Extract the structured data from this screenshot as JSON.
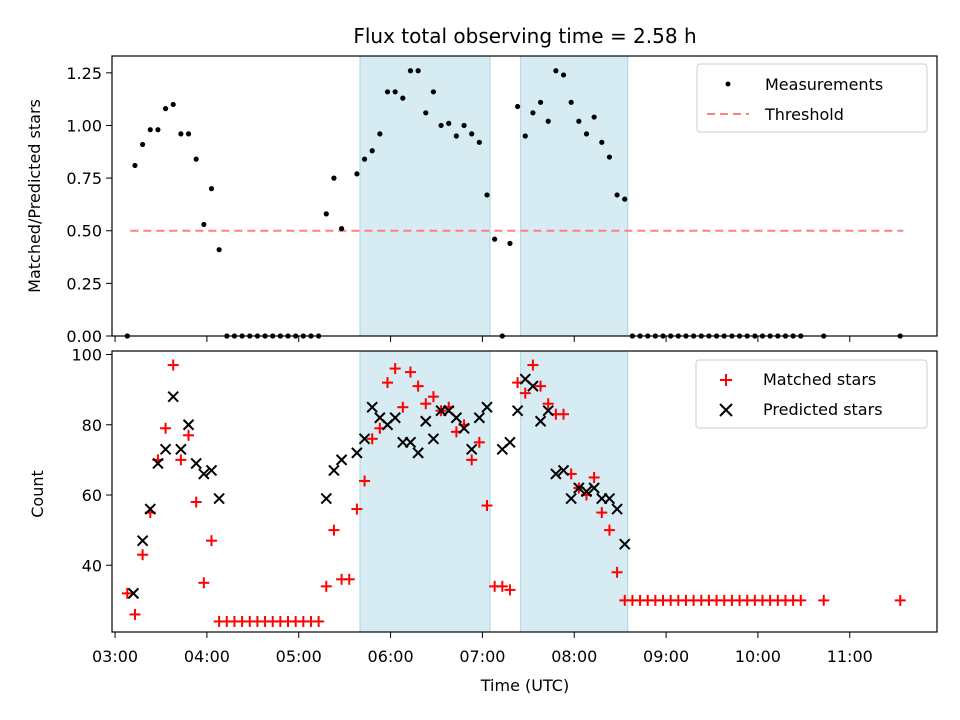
{
  "chart_data": {
    "type": "scatter",
    "title": "Flux total observing time = 2.58 h",
    "xlabel": "Time (UTC)",
    "x_ticks": [
      "03:00",
      "04:00",
      "05:00",
      "06:00",
      "07:00",
      "08:00",
      "09:00",
      "10:00",
      "11:00"
    ],
    "xlim": [
      "02:58",
      "11:57"
    ],
    "observing_windows": [
      {
        "start": "05:40",
        "end": "07:05"
      },
      {
        "start": "07:25",
        "end": "08:35"
      }
    ],
    "panels": [
      {
        "ylabel": "Matched/Predicted stars",
        "ylim": [
          0,
          1.33
        ],
        "y_ticks": [
          "0.00",
          "0.25",
          "0.50",
          "0.75",
          "1.00",
          "1.25"
        ],
        "legend_position": "upper-right",
        "threshold": {
          "name": "Threshold",
          "value": 0.5,
          "color": "#ff8080",
          "x_range": [
            "03:10",
            "11:35"
          ]
        },
        "series": [
          {
            "name": "Measurements",
            "marker": "dot",
            "color": "#000000",
            "points": [
              [
                "03:08",
                0
              ],
              [
                "03:13",
                0.81
              ],
              [
                "03:18",
                0.91
              ],
              [
                "03:23",
                0.98
              ],
              [
                "03:28",
                0.98
              ],
              [
                "03:33",
                1.08
              ],
              [
                "03:38",
                1.1
              ],
              [
                "03:43",
                0.96
              ],
              [
                "03:48",
                0.96
              ],
              [
                "03:53",
                0.84
              ],
              [
                "03:58",
                0.53
              ],
              [
                "04:03",
                0.7
              ],
              [
                "04:08",
                0.41
              ],
              [
                "04:13",
                0
              ],
              [
                "04:18",
                0
              ],
              [
                "04:23",
                0
              ],
              [
                "04:28",
                0
              ],
              [
                "04:33",
                0
              ],
              [
                "04:38",
                0
              ],
              [
                "04:43",
                0
              ],
              [
                "04:48",
                0
              ],
              [
                "04:53",
                0
              ],
              [
                "04:58",
                0
              ],
              [
                "05:03",
                0
              ],
              [
                "05:08",
                0
              ],
              [
                "05:13",
                0
              ],
              [
                "05:18",
                0.58
              ],
              [
                "05:23",
                0.75
              ],
              [
                "05:28",
                0.51
              ],
              [
                "05:38",
                0.77
              ],
              [
                "05:43",
                0.84
              ],
              [
                "05:48",
                0.88
              ],
              [
                "05:53",
                0.96
              ],
              [
                "05:58",
                1.16
              ],
              [
                "06:03",
                1.16
              ],
              [
                "06:08",
                1.13
              ],
              [
                "06:13",
                1.26
              ],
              [
                "06:18",
                1.26
              ],
              [
                "06:23",
                1.06
              ],
              [
                "06:28",
                1.16
              ],
              [
                "06:33",
                1.0
              ],
              [
                "06:38",
                1.01
              ],
              [
                "06:43",
                0.95
              ],
              [
                "06:48",
                1.0
              ],
              [
                "06:53",
                0.96
              ],
              [
                "06:58",
                0.92
              ],
              [
                "07:03",
                0.67
              ],
              [
                "07:08",
                0.46
              ],
              [
                "07:13",
                0
              ],
              [
                "07:18",
                0.44
              ],
              [
                "07:23",
                1.09
              ],
              [
                "07:28",
                0.95
              ],
              [
                "07:33",
                1.06
              ],
              [
                "07:38",
                1.11
              ],
              [
                "07:43",
                1.02
              ],
              [
                "07:48",
                1.26
              ],
              [
                "07:53",
                1.24
              ],
              [
                "07:58",
                1.11
              ],
              [
                "08:03",
                1.02
              ],
              [
                "08:08",
                0.96
              ],
              [
                "08:13",
                1.04
              ],
              [
                "08:18",
                0.92
              ],
              [
                "08:23",
                0.85
              ],
              [
                "08:28",
                0.67
              ],
              [
                "08:33",
                0.65
              ],
              [
                "08:38",
                0
              ],
              [
                "08:43",
                0
              ],
              [
                "08:48",
                0
              ],
              [
                "08:53",
                0
              ],
              [
                "08:58",
                0
              ],
              [
                "09:03",
                0
              ],
              [
                "09:08",
                0
              ],
              [
                "09:13",
                0
              ],
              [
                "09:18",
                0
              ],
              [
                "09:23",
                0
              ],
              [
                "09:28",
                0
              ],
              [
                "09:33",
                0
              ],
              [
                "09:38",
                0
              ],
              [
                "09:43",
                0
              ],
              [
                "09:48",
                0
              ],
              [
                "09:53",
                0
              ],
              [
                "09:58",
                0
              ],
              [
                "10:03",
                0
              ],
              [
                "10:08",
                0
              ],
              [
                "10:13",
                0
              ],
              [
                "10:18",
                0
              ],
              [
                "10:23",
                0
              ],
              [
                "10:28",
                0
              ],
              [
                "10:43",
                0
              ],
              [
                "11:33",
                0
              ]
            ]
          }
        ]
      },
      {
        "ylabel": "Count",
        "ylim": [
          21,
          101
        ],
        "y_ticks": [
          "40",
          "60",
          "80",
          "100"
        ],
        "legend_position": "upper-right",
        "series": [
          {
            "name": "Matched stars",
            "marker": "plus",
            "color": "#ff0000",
            "points": [
              [
                "03:08",
                32
              ],
              [
                "03:13",
                26
              ],
              [
                "03:18",
                43
              ],
              [
                "03:23",
                55
              ],
              [
                "03:28",
                70
              ],
              [
                "03:33",
                79
              ],
              [
                "03:38",
                97
              ],
              [
                "03:43",
                70
              ],
              [
                "03:48",
                77
              ],
              [
                "03:53",
                58
              ],
              [
                "03:58",
                35
              ],
              [
                "04:03",
                47
              ],
              [
                "04:08",
                24
              ],
              [
                "04:13",
                24
              ],
              [
                "04:18",
                24
              ],
              [
                "04:23",
                24
              ],
              [
                "04:28",
                24
              ],
              [
                "04:33",
                24
              ],
              [
                "04:38",
                24
              ],
              [
                "04:43",
                24
              ],
              [
                "04:48",
                24
              ],
              [
                "04:53",
                24
              ],
              [
                "04:58",
                24
              ],
              [
                "05:03",
                24
              ],
              [
                "05:08",
                24
              ],
              [
                "05:13",
                24
              ],
              [
                "05:18",
                34
              ],
              [
                "05:23",
                50
              ],
              [
                "05:28",
                36
              ],
              [
                "05:33",
                36
              ],
              [
                "05:38",
                56
              ],
              [
                "05:43",
                64
              ],
              [
                "05:48",
                76
              ],
              [
                "05:53",
                79
              ],
              [
                "05:58",
                92
              ],
              [
                "06:03",
                96
              ],
              [
                "06:08",
                85
              ],
              [
                "06:13",
                95
              ],
              [
                "06:18",
                91
              ],
              [
                "06:23",
                86
              ],
              [
                "06:28",
                88
              ],
              [
                "06:33",
                84
              ],
              [
                "06:38",
                85
              ],
              [
                "06:43",
                78
              ],
              [
                "06:48",
                80
              ],
              [
                "06:53",
                70
              ],
              [
                "06:58",
                75
              ],
              [
                "07:03",
                57
              ],
              [
                "07:08",
                34
              ],
              [
                "07:13",
                34
              ],
              [
                "07:18",
                33
              ],
              [
                "07:23",
                92
              ],
              [
                "07:28",
                89
              ],
              [
                "07:33",
                97
              ],
              [
                "07:38",
                91
              ],
              [
                "07:43",
                86
              ],
              [
                "07:48",
                83
              ],
              [
                "07:53",
                83
              ],
              [
                "07:58",
                66
              ],
              [
                "08:03",
                62
              ],
              [
                "08:08",
                60
              ],
              [
                "08:13",
                65
              ],
              [
                "08:18",
                55
              ],
              [
                "08:23",
                50
              ],
              [
                "08:28",
                38
              ],
              [
                "08:33",
                30
              ],
              [
                "08:38",
                30
              ],
              [
                "08:43",
                30
              ],
              [
                "08:48",
                30
              ],
              [
                "08:53",
                30
              ],
              [
                "08:58",
                30
              ],
              [
                "09:03",
                30
              ],
              [
                "09:08",
                30
              ],
              [
                "09:13",
                30
              ],
              [
                "09:18",
                30
              ],
              [
                "09:23",
                30
              ],
              [
                "09:28",
                30
              ],
              [
                "09:33",
                30
              ],
              [
                "09:38",
                30
              ],
              [
                "09:43",
                30
              ],
              [
                "09:48",
                30
              ],
              [
                "09:53",
                30
              ],
              [
                "09:58",
                30
              ],
              [
                "10:03",
                30
              ],
              [
                "10:08",
                30
              ],
              [
                "10:13",
                30
              ],
              [
                "10:18",
                30
              ],
              [
                "10:23",
                30
              ],
              [
                "10:28",
                30
              ],
              [
                "10:43",
                30
              ],
              [
                "11:33",
                30
              ]
            ]
          },
          {
            "name": "Predicted stars",
            "marker": "x",
            "color": "#000000",
            "points": [
              [
                "03:12",
                32
              ],
              [
                "03:18",
                47
              ],
              [
                "03:23",
                56
              ],
              [
                "03:28",
                69
              ],
              [
                "03:33",
                73
              ],
              [
                "03:38",
                88
              ],
              [
                "03:43",
                73
              ],
              [
                "03:48",
                80
              ],
              [
                "03:53",
                69
              ],
              [
                "03:58",
                66
              ],
              [
                "04:03",
                67
              ],
              [
                "04:08",
                59
              ],
              [
                "05:18",
                59
              ],
              [
                "05:23",
                67
              ],
              [
                "05:28",
                70
              ],
              [
                "05:38",
                72
              ],
              [
                "05:43",
                76
              ],
              [
                "05:48",
                85
              ],
              [
                "05:53",
                82
              ],
              [
                "05:58",
                80
              ],
              [
                "06:03",
                82
              ],
              [
                "06:08",
                75
              ],
              [
                "06:13",
                75
              ],
              [
                "06:18",
                72
              ],
              [
                "06:23",
                81
              ],
              [
                "06:28",
                76
              ],
              [
                "06:33",
                84
              ],
              [
                "06:38",
                84
              ],
              [
                "06:43",
                82
              ],
              [
                "06:48",
                79
              ],
              [
                "06:53",
                73
              ],
              [
                "06:58",
                82
              ],
              [
                "07:03",
                85
              ],
              [
                "07:13",
                73
              ],
              [
                "07:18",
                75
              ],
              [
                "07:23",
                84
              ],
              [
                "07:28",
                93
              ],
              [
                "07:33",
                91
              ],
              [
                "07:38",
                81
              ],
              [
                "07:43",
                84
              ],
              [
                "07:48",
                66
              ],
              [
                "07:53",
                67
              ],
              [
                "07:58",
                59
              ],
              [
                "08:03",
                62
              ],
              [
                "08:08",
                61
              ],
              [
                "08:13",
                62
              ],
              [
                "08:18",
                59
              ],
              [
                "08:23",
                59
              ],
              [
                "08:28",
                56
              ],
              [
                "08:33",
                46
              ]
            ]
          }
        ]
      }
    ]
  },
  "colors": {
    "observing_window": "#add8e6",
    "observing_window_opacity": 0.5
  }
}
